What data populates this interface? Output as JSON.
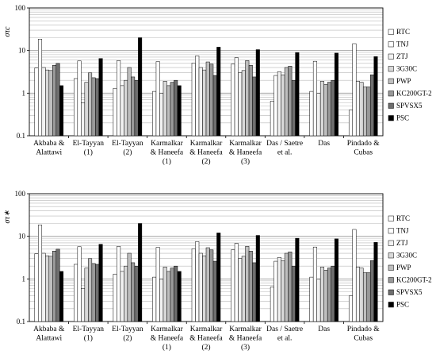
{
  "chart_data": [
    {
      "type": "bar",
      "ylabel": "στc",
      "yscale": "log",
      "ylim": [
        0.1,
        100
      ],
      "yticks": [
        "0.1",
        "1",
        "10",
        "100"
      ],
      "grid": true,
      "legend_position": "right",
      "categories": [
        [
          "Akbaba &",
          "Alattawi"
        ],
        [
          "El-Tayyan",
          "(1)"
        ],
        [
          "El-Tayyan",
          "(2)"
        ],
        [
          "Karmalkar",
          "& Haneefa",
          "(1)"
        ],
        [
          "Karmalkar",
          "& Haneefa",
          "(2)"
        ],
        [
          "Karmalkar",
          "& Haneefa",
          "(3)"
        ],
        [
          "Das / Saetre",
          "et al."
        ],
        [
          "Das"
        ],
        [
          "Pindado &",
          "Cubas"
        ]
      ],
      "series": [
        {
          "name": "RTC",
          "color": "#ffffff",
          "values": [
            3.9,
            2.2,
            1.3,
            1.1,
            5.1,
            4.8,
            0.65,
            1.1,
            0.4
          ]
        },
        {
          "name": "TNJ",
          "color": "#ffffff",
          "values": [
            18.5,
            5.7,
            5.8,
            5.5,
            7.5,
            6.8,
            2.6,
            5.6,
            14.5
          ]
        },
        {
          "name": "ZTJ",
          "color": "#f2f2f2",
          "values": [
            4.0,
            0.6,
            1.5,
            1.0,
            4.0,
            3.0,
            3.2,
            1.0,
            1.9
          ]
        },
        {
          "name": "3G30C",
          "color": "#d9d9d9",
          "values": [
            3.5,
            1.8,
            2.0,
            1.9,
            3.5,
            3.4,
            2.7,
            1.9,
            1.8
          ]
        },
        {
          "name": "PWP",
          "color": "#bfbfbf",
          "values": [
            3.4,
            3.0,
            4.0,
            1.5,
            5.4,
            5.8,
            4.0,
            1.6,
            1.4
          ]
        },
        {
          "name": "KC200GT-2",
          "color": "#999999",
          "values": [
            4.5,
            2.3,
            2.4,
            1.8,
            4.8,
            4.5,
            4.3,
            1.8,
            1.4
          ]
        },
        {
          "name": "SPVSX5",
          "color": "#6e6e6e",
          "values": [
            5.0,
            2.2,
            2.0,
            2.0,
            2.6,
            2.4,
            2.0,
            2.0,
            2.7
          ]
        },
        {
          "name": "PSC",
          "color": "#000000",
          "values": [
            1.5,
            6.5,
            20.0,
            1.5,
            12.0,
            10.5,
            9.0,
            8.7,
            7.2
          ]
        }
      ]
    },
    {
      "type": "bar",
      "ylabel": "στ∗",
      "yscale": "log",
      "ylim": [
        0.1,
        100
      ],
      "yticks": [
        "0.1",
        "1",
        "10",
        "100"
      ],
      "grid": true,
      "legend_position": "right",
      "categories": [
        [
          "Akbaba &",
          "Alattawi"
        ],
        [
          "El-Tayyan",
          "(1)"
        ],
        [
          "El-Tayyan",
          "(2)"
        ],
        [
          "Karmalkar",
          "& Haneefa",
          "(1)"
        ],
        [
          "Karmalkar",
          "& Haneefa",
          "(2)"
        ],
        [
          "Karmalkar",
          "& Haneefa",
          "(3)"
        ],
        [
          "Das / Saetre",
          "et al."
        ],
        [
          "Das"
        ],
        [
          "Pindado &",
          "Cubas"
        ]
      ],
      "series": [
        {
          "name": "RTC",
          "color": "#ffffff",
          "values": [
            3.9,
            2.2,
            1.3,
            1.1,
            5.1,
            4.8,
            0.65,
            1.1,
            0.4
          ]
        },
        {
          "name": "TNJ",
          "color": "#ffffff",
          "values": [
            18.5,
            5.7,
            5.8,
            5.5,
            7.5,
            6.8,
            2.6,
            5.6,
            14.5
          ]
        },
        {
          "name": "ZTJ",
          "color": "#f2f2f2",
          "values": [
            4.0,
            0.6,
            1.5,
            1.0,
            4.0,
            3.0,
            3.2,
            1.0,
            1.9
          ]
        },
        {
          "name": "3G30C",
          "color": "#d9d9d9",
          "values": [
            3.5,
            1.8,
            2.0,
            1.9,
            3.5,
            3.4,
            2.7,
            1.9,
            1.8
          ]
        },
        {
          "name": "PWP",
          "color": "#bfbfbf",
          "values": [
            3.4,
            3.0,
            4.0,
            1.5,
            5.4,
            5.8,
            4.0,
            1.6,
            1.4
          ]
        },
        {
          "name": "KC200GT-2",
          "color": "#999999",
          "values": [
            4.5,
            2.3,
            2.4,
            1.8,
            4.8,
            4.5,
            4.3,
            1.8,
            1.4
          ]
        },
        {
          "name": "SPVSX5",
          "color": "#6e6e6e",
          "values": [
            5.0,
            2.2,
            2.0,
            2.0,
            2.6,
            2.4,
            2.0,
            2.0,
            2.7
          ]
        },
        {
          "name": "PSC",
          "color": "#000000",
          "values": [
            1.5,
            6.5,
            20.0,
            1.5,
            12.0,
            10.5,
            9.0,
            8.7,
            7.2
          ]
        }
      ]
    }
  ]
}
